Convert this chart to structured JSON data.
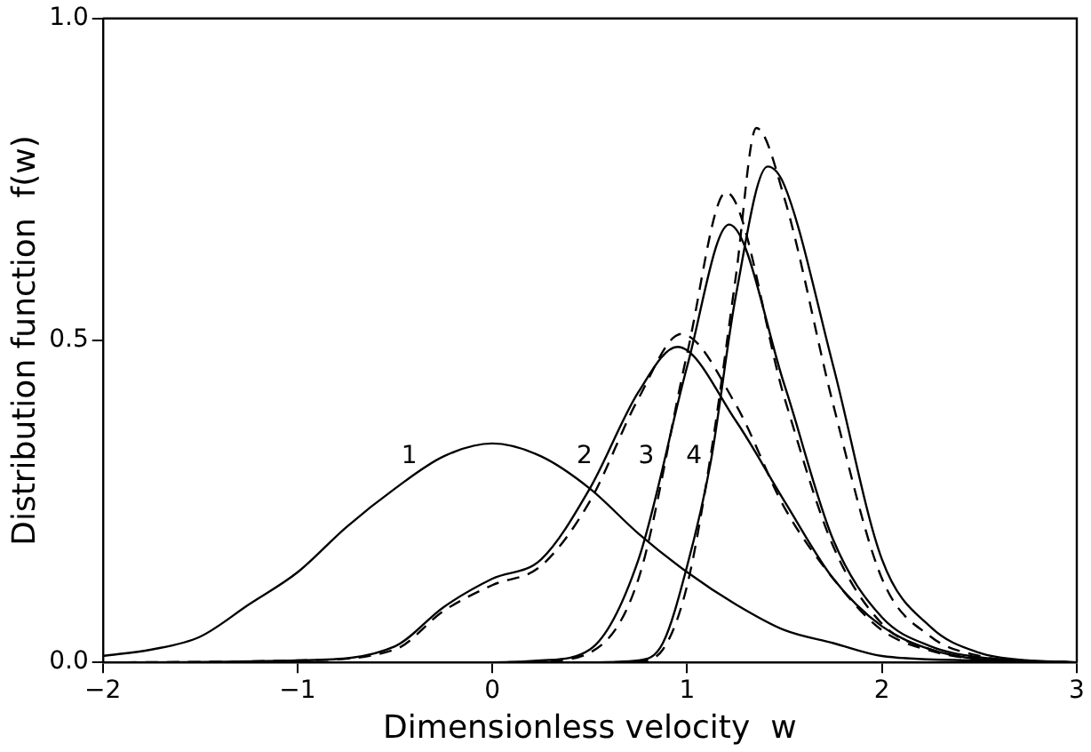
{
  "chart_data": {
    "type": "line",
    "xlabel": "Dimensionless velocity  w",
    "ylabel": "Distribution function  f(w)",
    "xlim": [
      -2,
      3
    ],
    "ylim": [
      0,
      1
    ],
    "xticks": [
      -2,
      -1,
      0,
      1,
      2,
      3
    ],
    "yticks": [
      {
        "value": 0,
        "label": "0.0"
      },
      {
        "value": 0.5,
        "label": "0.5"
      },
      {
        "value": 1,
        "label": "1.0"
      }
    ],
    "grid": false,
    "legend": false,
    "marker": "none",
    "series": [
      {
        "name": "1",
        "color": "#000000",
        "line_style": "solid",
        "x": [
          -2,
          -1.75,
          -1.5,
          -1.25,
          -1,
          -0.75,
          -0.5,
          -0.25,
          0,
          0.25,
          0.5,
          0.75,
          1,
          1.25,
          1.5,
          1.75,
          2,
          2.5,
          3
        ],
        "values": [
          0.01,
          0.02,
          0.04,
          0.09,
          0.14,
          0.21,
          0.27,
          0.32,
          0.34,
          0.32,
          0.27,
          0.2,
          0.14,
          0.09,
          0.05,
          0.03,
          0.01,
          0.003,
          0
        ]
      },
      {
        "name": "2",
        "color": "#000000",
        "line_style": "solid",
        "x": [
          -2,
          -1,
          -0.5,
          -0.25,
          0,
          0.25,
          0.5,
          0.75,
          0.95,
          1.25,
          1.5,
          1.75,
          2,
          2.25,
          2.5,
          3
        ],
        "values": [
          0,
          0.003,
          0.025,
          0.086,
          0.13,
          0.16,
          0.27,
          0.42,
          0.49,
          0.375,
          0.25,
          0.13,
          0.056,
          0.02,
          0.005,
          0
        ]
      },
      {
        "color": "#000000",
        "line_style": "dashed",
        "x": [
          -2,
          -1,
          -0.5,
          -0.25,
          0,
          0.25,
          0.5,
          0.75,
          0.97,
          1.25,
          1.5,
          1.75,
          2,
          2.25,
          2.5,
          3
        ],
        "values": [
          0,
          0.003,
          0.02,
          0.08,
          0.12,
          0.15,
          0.25,
          0.41,
          0.51,
          0.4,
          0.24,
          0.13,
          0.05,
          0.018,
          0.005,
          0
        ]
      },
      {
        "name": "3",
        "color": "#000000",
        "line_style": "solid",
        "x": [
          -2,
          0,
          0.25,
          0.5,
          0.75,
          1,
          1.215,
          1.5,
          1.75,
          2,
          2.25,
          2.5,
          3
        ],
        "values": [
          0,
          0,
          0.003,
          0.02,
          0.16,
          0.46,
          0.68,
          0.43,
          0.19,
          0.07,
          0.025,
          0.008,
          0
        ]
      },
      {
        "color": "#000000",
        "line_style": "dashed",
        "x": [
          -2,
          0,
          0.25,
          0.5,
          0.75,
          1,
          1.2,
          1.5,
          1.75,
          2,
          2.25,
          2.5,
          3
        ],
        "values": [
          0,
          0,
          0.002,
          0.015,
          0.13,
          0.48,
          0.73,
          0.41,
          0.18,
          0.06,
          0.02,
          0.006,
          0
        ]
      },
      {
        "name": "4",
        "color": "#000000",
        "line_style": "solid",
        "x": [
          -2,
          0.5,
          0.75,
          0.875,
          1,
          1.12,
          1.25,
          1.413,
          1.5,
          1.75,
          2,
          2.25,
          2.5,
          2.75,
          3
        ],
        "values": [
          0,
          0,
          0.003,
          0.03,
          0.15,
          0.31,
          0.57,
          0.77,
          0.74,
          0.46,
          0.16,
          0.055,
          0.015,
          0.003,
          0
        ]
      },
      {
        "color": "#000000",
        "line_style": "dashed",
        "x": [
          -2,
          0.5,
          0.75,
          0.875,
          1,
          1.12,
          1.25,
          1.355,
          1.5,
          1.75,
          2,
          2.25,
          2.5,
          2.75,
          3
        ],
        "values": [
          0,
          0,
          0.002,
          0.02,
          0.12,
          0.32,
          0.6,
          0.83,
          0.72,
          0.4,
          0.13,
          0.04,
          0.01,
          0.002,
          0
        ]
      }
    ]
  }
}
